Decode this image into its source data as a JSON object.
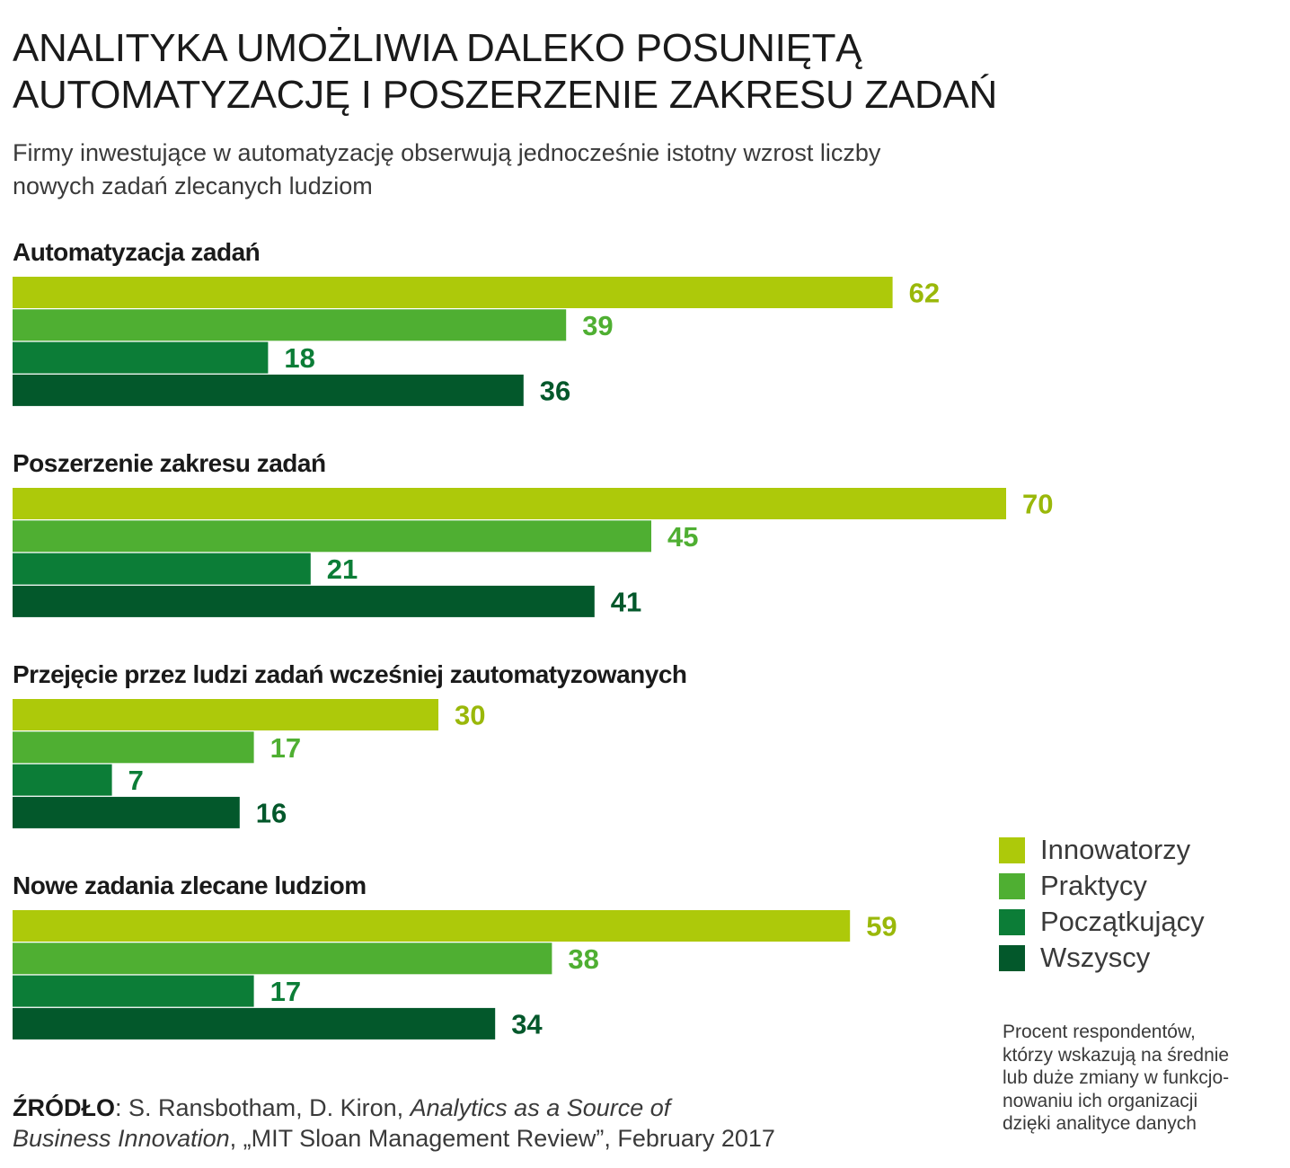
{
  "title_lines": [
    "ANALITYKA UMOŻLIWIA DALEKO POSUNIĘTĄ",
    "AUTOMATYZACJĘ I POSZERZENIE ZAKRESU ZADAŃ"
  ],
  "subtitle_lines": [
    "Firmy inwestujące w automatyzację obserwują jednocześnie istotny wzrost liczby",
    "nowych zadań zlecanych ludziom"
  ],
  "legend": [
    {
      "label": "Innowatorzy",
      "color": "#adc90a"
    },
    {
      "label": "Praktycy",
      "color": "#4faf32"
    },
    {
      "label": "Początkujący",
      "color": "#0c7d37"
    },
    {
      "label": "Wszyscy",
      "color": "#03582b"
    }
  ],
  "note_lines": [
    "Procent respondentów,",
    "którzy wskazują na średnie",
    "lub duże zmiany w funkcjo-",
    "nowaniu ich organizacji",
    "dzięki analityce danych"
  ],
  "source": {
    "label": "ŹRÓDŁO",
    "line1_plain": ": S. Ransbotham, D. Kiron, ",
    "line1_italic": "Analytics as a Source of",
    "line2_italic": "Business Innovation",
    "line2_plain": ", „MIT Sloan Management Review”, February 2017"
  },
  "chart_data": {
    "type": "bar",
    "orientation": "horizontal",
    "unit": "",
    "groups": [
      {
        "label": "Automatyzacja zadań",
        "values": [
          62,
          39,
          18,
          36
        ]
      },
      {
        "label": "Poszerzenie zakresu zadań",
        "values": [
          70,
          45,
          21,
          41
        ]
      },
      {
        "label": "Przejęcie przez ludzi zadań wcześniej zautomatyzowanych",
        "values": [
          30,
          17,
          7,
          16
        ]
      },
      {
        "label": "Nowe zadania zlecane ludziom",
        "values": [
          59,
          38,
          17,
          34
        ]
      }
    ],
    "series": [
      {
        "name": "Innowatorzy",
        "color": "#adc90a",
        "label_color": "#9ab80a"
      },
      {
        "name": "Praktycy",
        "color": "#4faf32",
        "label_color": "#4faf32"
      },
      {
        "name": "Początkujący",
        "color": "#0c7d37",
        "label_color": "#0c7d37"
      },
      {
        "name": "Wszyscy",
        "color": "#03582b",
        "label_color": "#03582b"
      }
    ],
    "data_labels": true,
    "grid": false,
    "legend_position": "bottom-right"
  }
}
